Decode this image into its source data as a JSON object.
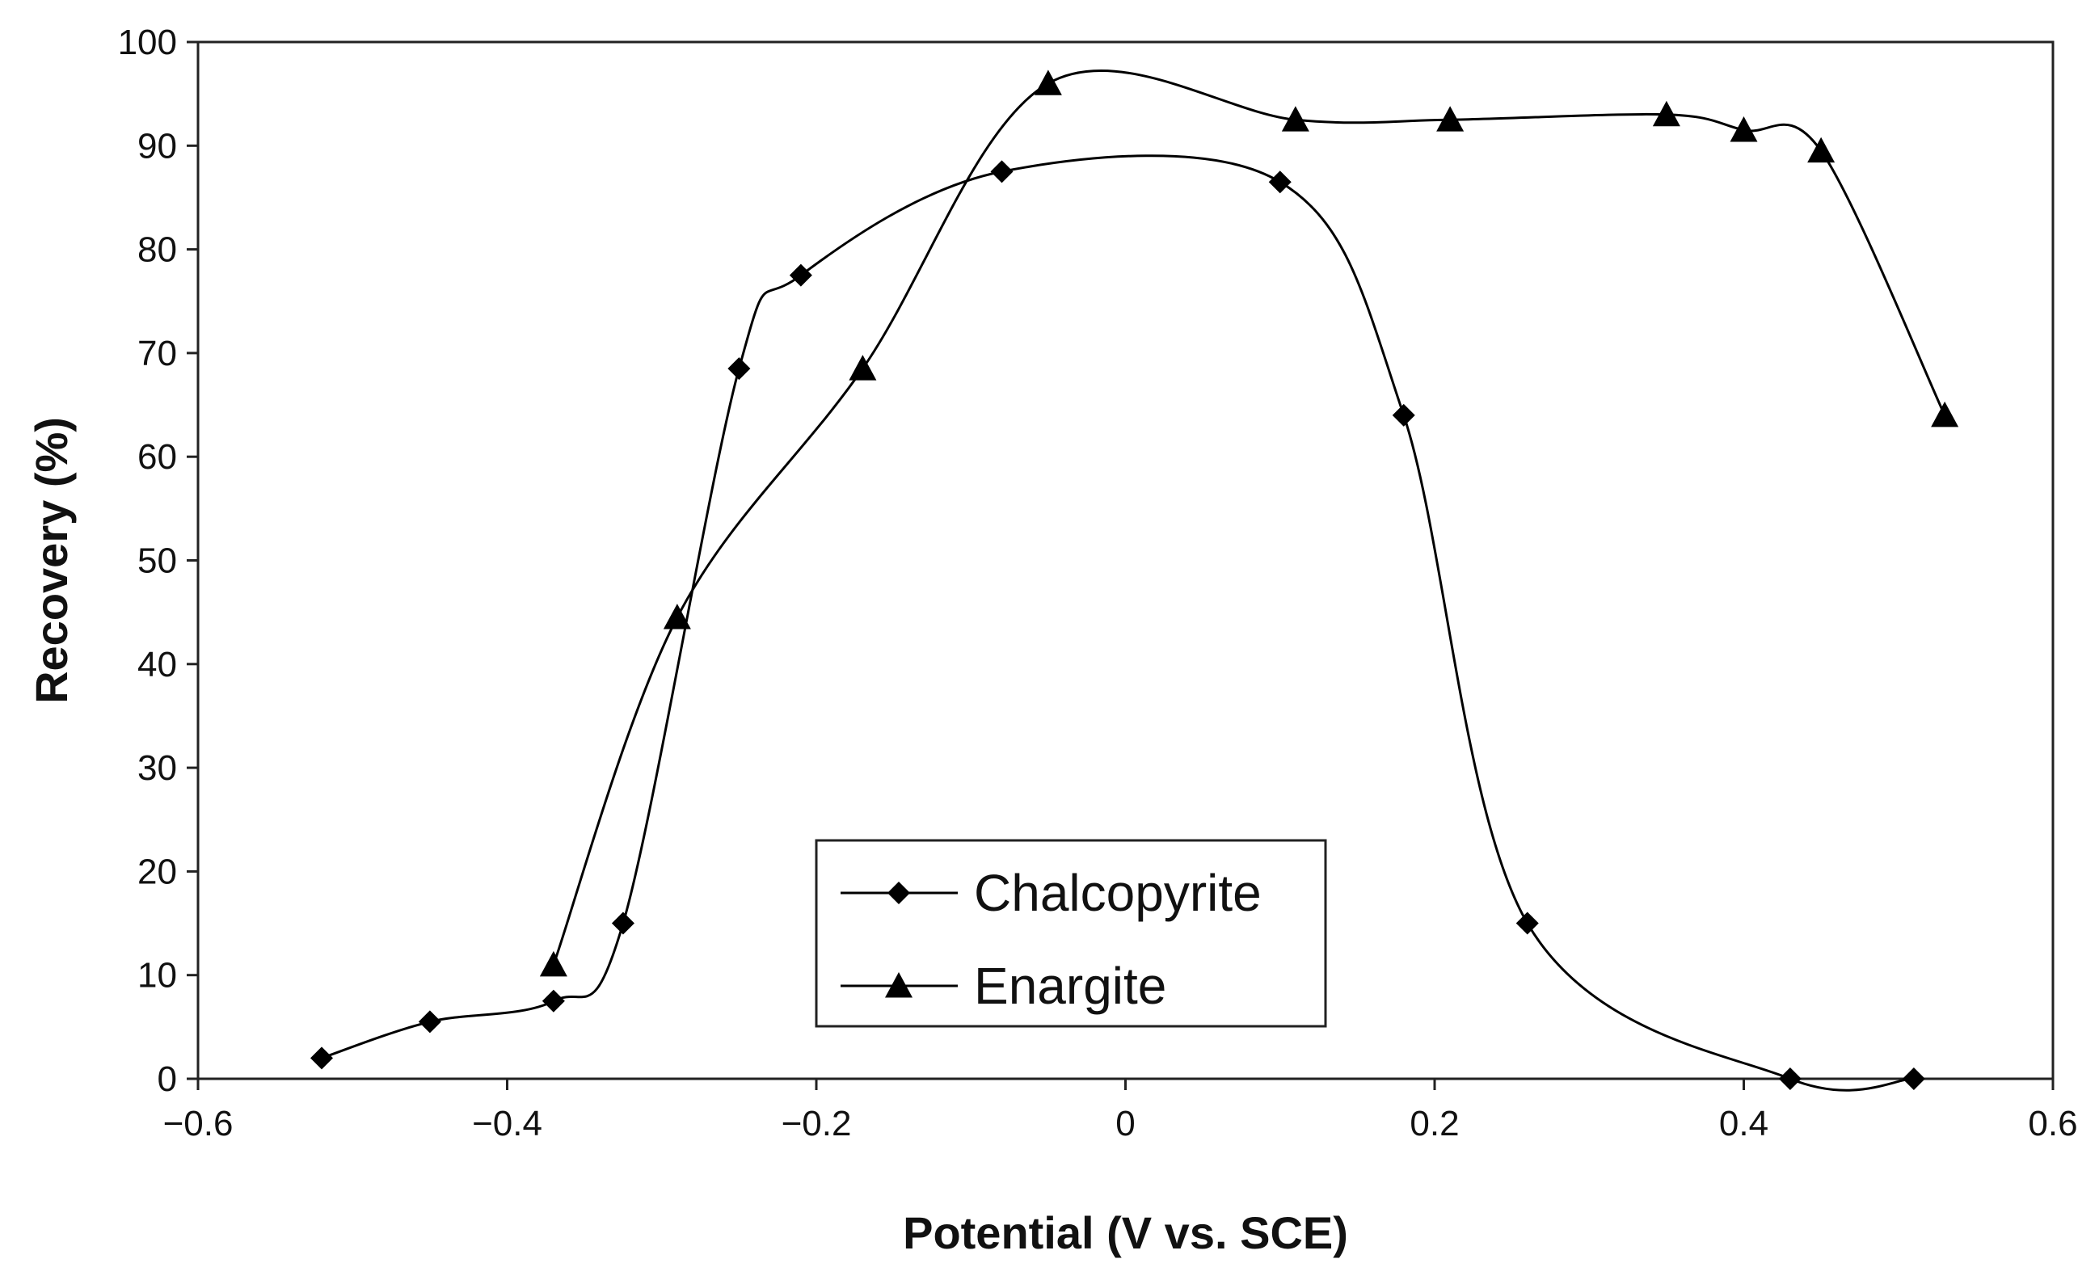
{
  "chart_data": {
    "type": "line",
    "title": "",
    "xlabel": "Potential (V vs. SCE)",
    "ylabel": "Recovery (%)",
    "xlim": [
      -0.6,
      0.6
    ],
    "ylim": [
      0,
      100
    ],
    "x_ticks": [
      -0.6,
      -0.4,
      -0.2,
      0,
      0.2,
      0.4,
      0.6
    ],
    "x_tick_labels": [
      "−0.6",
      "−0.4",
      "−0.2",
      "0",
      "0.2",
      "0.4",
      "0.6"
    ],
    "y_ticks": [
      0,
      10,
      20,
      30,
      40,
      50,
      60,
      70,
      80,
      90,
      100
    ],
    "y_tick_labels": [
      "0",
      "10",
      "20",
      "30",
      "40",
      "50",
      "60",
      "70",
      "80",
      "90",
      "100"
    ],
    "grid": false,
    "legend_position": "bottom-center",
    "line_color": "#000000",
    "series": [
      {
        "name": "Chalcopyrite",
        "marker": "diamond",
        "x": [
          -0.52,
          -0.45,
          -0.37,
          -0.325,
          -0.25,
          -0.21,
          -0.08,
          0.1,
          0.18,
          0.26,
          0.43,
          0.51
        ],
        "y": [
          2,
          5.5,
          7.5,
          15,
          68.5,
          77.5,
          87.5,
          86.5,
          64,
          15,
          0,
          0
        ]
      },
      {
        "name": "Enargite",
        "marker": "triangle",
        "x": [
          -0.37,
          -0.29,
          -0.17,
          -0.05,
          0.11,
          0.21,
          0.35,
          0.4,
          0.45,
          0.53
        ],
        "y": [
          11,
          44.5,
          68.5,
          96,
          92.5,
          92.5,
          93,
          91.5,
          89.5,
          64
        ]
      }
    ]
  }
}
